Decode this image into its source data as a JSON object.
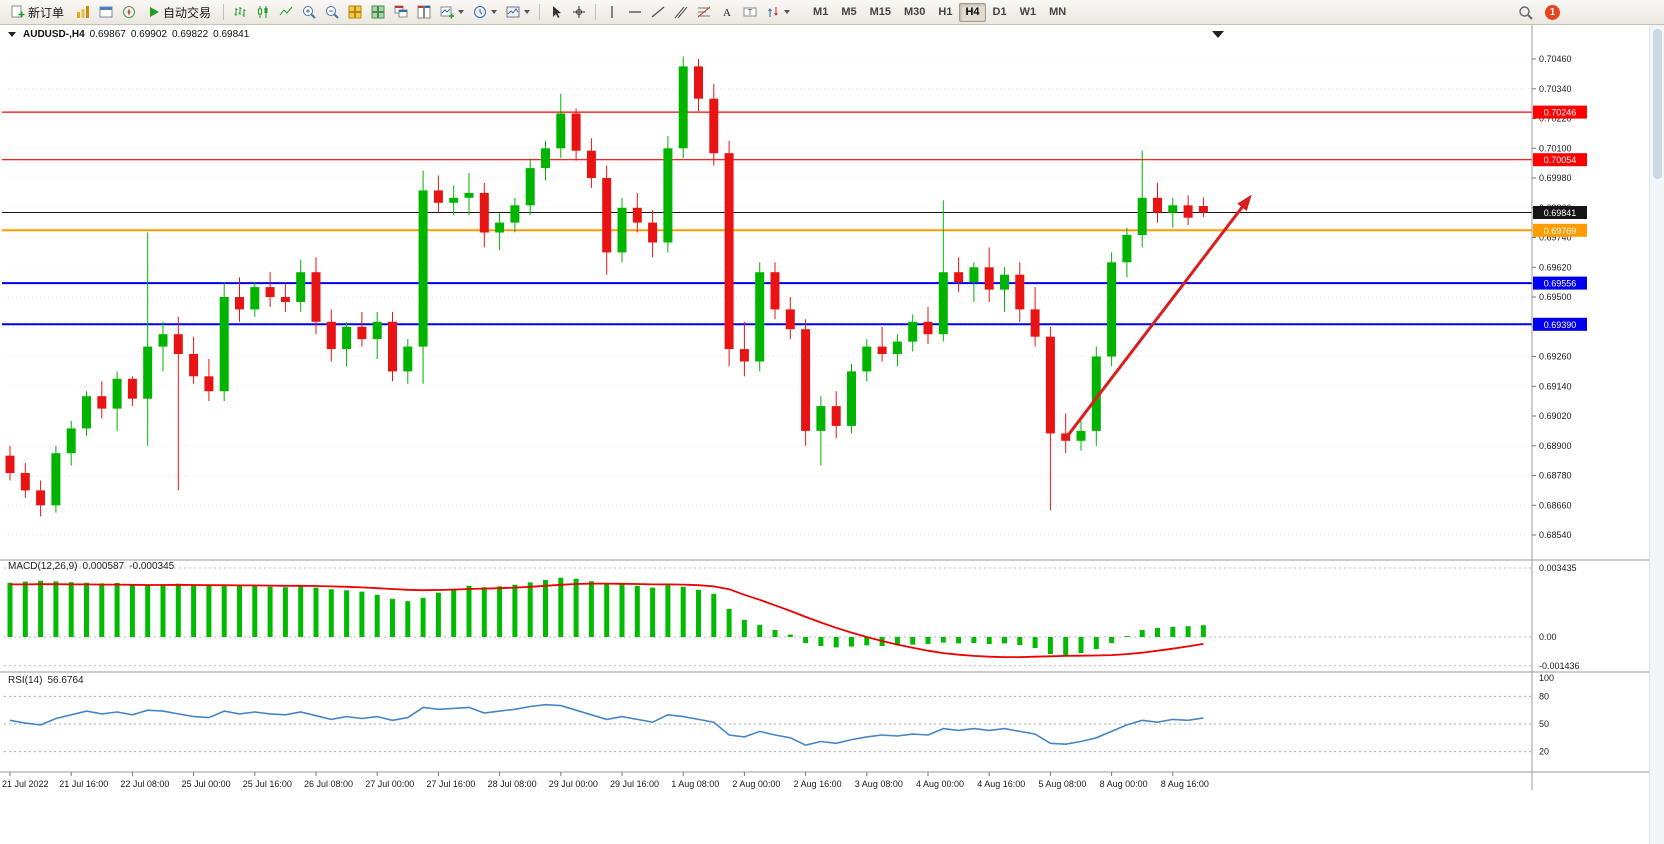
{
  "toolbar": {
    "new_order_label": "新订单",
    "auto_trading_label": "自动交易",
    "timeframes": [
      "M1",
      "M5",
      "M15",
      "M30",
      "H1",
      "H4",
      "D1",
      "W1",
      "MN"
    ],
    "active_timeframe": "H4",
    "notification_count": "1"
  },
  "chart_header": {
    "symbol": "AUDUSD-,H4",
    "open": "0.69867",
    "high": "0.69902",
    "low": "0.69822",
    "close": "0.69841"
  },
  "price_axis": {
    "labels": [
      "0.70460",
      "0.70340",
      "0.70220",
      "0.70100",
      "0.69980",
      "0.69860",
      "0.69740",
      "0.69620",
      "0.69500",
      "0.69380",
      "0.69260",
      "0.69140",
      "0.69020",
      "0.68900",
      "0.68780",
      "0.68660",
      "0.68540"
    ]
  },
  "levels": [
    {
      "price": 0.70246,
      "label": "0.70246",
      "color": "#ff0000",
      "width": 1.2
    },
    {
      "price": 0.70054,
      "label": "0.70054",
      "color": "#ff0000",
      "width": 1.2
    },
    {
      "price": 0.69841,
      "label": "0.69841",
      "color": "#151515",
      "width": 1
    },
    {
      "price": 0.69769,
      "label": "0.69769",
      "color": "#ff9c00",
      "width": 2
    },
    {
      "price": 0.69556,
      "label": "0.69556",
      "color": "#0000ee",
      "width": 2
    },
    {
      "price": 0.6939,
      "label": "0.69390",
      "color": "#0000ee",
      "width": 2
    }
  ],
  "time_axis": [
    {
      "candle": 0,
      "label": "21 Jul 2022"
    },
    {
      "candle": 4,
      "label": "21 Jul 16:00"
    },
    {
      "candle": 8,
      "label": "22 Jul 08:00"
    },
    {
      "candle": 12,
      "label": "25 Jul 00:00"
    },
    {
      "candle": 16,
      "label": "25 Jul 16:00"
    },
    {
      "candle": 20,
      "label": "26 Jul 08:00"
    },
    {
      "candle": 24,
      "label": "27 Jul 00:00"
    },
    {
      "candle": 28,
      "label": "27 Jul 16:00"
    },
    {
      "candle": 32,
      "label": "28 Jul 08:00"
    },
    {
      "candle": 36,
      "label": "29 Jul 00:00"
    },
    {
      "candle": 40,
      "label": "29 Jul 16:00"
    },
    {
      "candle": 44,
      "label": "1 Aug 08:00"
    },
    {
      "candle": 48,
      "label": "2 Aug 00:00"
    },
    {
      "candle": 52,
      "label": "2 Aug 16:00"
    },
    {
      "candle": 56,
      "label": "3 Aug 08:00"
    },
    {
      "candle": 60,
      "label": "4 Aug 00:00"
    },
    {
      "candle": 64,
      "label": "4 Aug 16:00"
    },
    {
      "candle": 68,
      "label": "5 Aug 08:00"
    },
    {
      "candle": 72,
      "label": "8 Aug 00:00"
    },
    {
      "candle": 76,
      "label": "8 Aug 16:00"
    }
  ],
  "macd_panel": {
    "name": "MACD(12,26,9)",
    "value": "0.000587",
    "signal": "-0.000345",
    "axis": [
      {
        "value": 0.003435,
        "label": "0.003435"
      },
      {
        "value": 0,
        "label": "0.00"
      },
      {
        "value": -0.001436,
        "label": "-0.001436"
      }
    ]
  },
  "rsi_panel": {
    "name": "RSI(14)",
    "value": "56.6764",
    "axis": [
      {
        "value": 100,
        "label": "100"
      },
      {
        "value": 80,
        "label": "80"
      },
      {
        "value": 50,
        "label": "50"
      },
      {
        "value": 20,
        "label": "20"
      }
    ],
    "dashed_levels": [
      80,
      50,
      20
    ]
  },
  "arrow": {
    "from_candle": 69,
    "from_price": 0.6893,
    "to_candle": 81,
    "to_price": 0.699,
    "color": "#d81f1f"
  },
  "colors": {
    "up": "#00b400",
    "down": "#e81414",
    "grid": "#ebebeb",
    "macd_histogram": "#00bb00",
    "macd_signal": "#ee0000",
    "rsi_line": "#4686c6"
  },
  "chart_data": {
    "type": "candlestick",
    "candles": [
      [
        0.6886,
        0.689,
        0.6876,
        0.6879
      ],
      [
        0.6879,
        0.6883,
        0.6869,
        0.6872
      ],
      [
        0.6872,
        0.6876,
        0.68615,
        0.6866
      ],
      [
        0.6866,
        0.689,
        0.6863,
        0.6887
      ],
      [
        0.6887,
        0.69,
        0.6882,
        0.6897
      ],
      [
        0.6897,
        0.6912,
        0.6894,
        0.691
      ],
      [
        0.691,
        0.6916,
        0.6901,
        0.6905
      ],
      [
        0.6905,
        0.692,
        0.6896,
        0.6917
      ],
      [
        0.6917,
        0.6918,
        0.6906,
        0.6909
      ],
      [
        0.6909,
        0.6976,
        0.689,
        0.693
      ],
      [
        0.693,
        0.694,
        0.692,
        0.6935
      ],
      [
        0.6935,
        0.6942,
        0.6872,
        0.6927
      ],
      [
        0.6927,
        0.6934,
        0.6915,
        0.6918
      ],
      [
        0.6918,
        0.6925,
        0.6908,
        0.6912
      ],
      [
        0.6912,
        0.6956,
        0.6908,
        0.695
      ],
      [
        0.695,
        0.6958,
        0.694,
        0.6945
      ],
      [
        0.6945,
        0.6956,
        0.6942,
        0.6954
      ],
      [
        0.6954,
        0.696,
        0.6946,
        0.695
      ],
      [
        0.695,
        0.6956,
        0.6944,
        0.6948
      ],
      [
        0.6948,
        0.6965,
        0.6944,
        0.696
      ],
      [
        0.696,
        0.6966,
        0.6935,
        0.694
      ],
      [
        0.694,
        0.6945,
        0.6924,
        0.6929
      ],
      [
        0.6929,
        0.694,
        0.6922,
        0.6938
      ],
      [
        0.6938,
        0.6944,
        0.693,
        0.6933
      ],
      [
        0.6933,
        0.6944,
        0.6925,
        0.694
      ],
      [
        0.694,
        0.6944,
        0.6916,
        0.692
      ],
      [
        0.692,
        0.6933,
        0.6915,
        0.693
      ],
      [
        0.693,
        0.7001,
        0.6915,
        0.6993
      ],
      [
        0.6993,
        0.6999,
        0.6984,
        0.6988
      ],
      [
        0.6988,
        0.6995,
        0.6983,
        0.699
      ],
      [
        0.699,
        0.7,
        0.6983,
        0.6992
      ],
      [
        0.6992,
        0.6996,
        0.697,
        0.6976
      ],
      [
        0.6976,
        0.6984,
        0.6969,
        0.698
      ],
      [
        0.698,
        0.699,
        0.6976,
        0.6987
      ],
      [
        0.6987,
        0.7006,
        0.6983,
        0.7002
      ],
      [
        0.7002,
        0.7013,
        0.6997,
        0.701
      ],
      [
        0.701,
        0.7032,
        0.7006,
        0.7024
      ],
      [
        0.7024,
        0.7026,
        0.7005,
        0.7009
      ],
      [
        0.7009,
        0.7014,
        0.6994,
        0.6998
      ],
      [
        0.6998,
        0.7003,
        0.6959,
        0.6968
      ],
      [
        0.6968,
        0.699,
        0.6964,
        0.6986
      ],
      [
        0.6986,
        0.6992,
        0.6976,
        0.698
      ],
      [
        0.698,
        0.6985,
        0.6966,
        0.6972
      ],
      [
        0.6972,
        0.7015,
        0.6968,
        0.701
      ],
      [
        0.701,
        0.7047,
        0.7006,
        0.7043
      ],
      [
        0.7043,
        0.7046,
        0.7025,
        0.703
      ],
      [
        0.703,
        0.7036,
        0.7003,
        0.7008
      ],
      [
        0.7008,
        0.7013,
        0.6922,
        0.6929
      ],
      [
        0.6929,
        0.694,
        0.6918,
        0.6924
      ],
      [
        0.6924,
        0.6964,
        0.692,
        0.696
      ],
      [
        0.696,
        0.6964,
        0.6941,
        0.6945
      ],
      [
        0.6945,
        0.695,
        0.6933,
        0.6937
      ],
      [
        0.6937,
        0.6941,
        0.689,
        0.6896
      ],
      [
        0.6896,
        0.691,
        0.6882,
        0.6906
      ],
      [
        0.6906,
        0.6912,
        0.6893,
        0.6898
      ],
      [
        0.6898,
        0.6923,
        0.6895,
        0.692
      ],
      [
        0.692,
        0.6933,
        0.6916,
        0.693
      ],
      [
        0.693,
        0.6938,
        0.6924,
        0.6927
      ],
      [
        0.6927,
        0.6935,
        0.6922,
        0.6932
      ],
      [
        0.6932,
        0.6943,
        0.6928,
        0.694
      ],
      [
        0.694,
        0.6946,
        0.6931,
        0.6935
      ],
      [
        0.6935,
        0.6989,
        0.6932,
        0.696
      ],
      [
        0.696,
        0.6966,
        0.6952,
        0.6956
      ],
      [
        0.6956,
        0.6964,
        0.6948,
        0.6962
      ],
      [
        0.6962,
        0.697,
        0.6948,
        0.6953
      ],
      [
        0.6953,
        0.6962,
        0.6944,
        0.6959
      ],
      [
        0.6959,
        0.6964,
        0.694,
        0.6945
      ],
      [
        0.6945,
        0.6954,
        0.693,
        0.6934
      ],
      [
        0.6934,
        0.6938,
        0.6864,
        0.6895
      ],
      [
        0.6895,
        0.6903,
        0.6887,
        0.6892
      ],
      [
        0.6892,
        0.69,
        0.6888,
        0.6896
      ],
      [
        0.6896,
        0.693,
        0.689,
        0.6926
      ],
      [
        0.6926,
        0.6968,
        0.6922,
        0.6964
      ],
      [
        0.6964,
        0.6978,
        0.6958,
        0.6975
      ],
      [
        0.6975,
        0.7009,
        0.697,
        0.699
      ],
      [
        0.699,
        0.6996,
        0.698,
        0.6984
      ],
      [
        0.6984,
        0.699,
        0.6978,
        0.6987
      ],
      [
        0.6987,
        0.6991,
        0.6979,
        0.6982
      ],
      [
        0.69867,
        0.69902,
        0.69822,
        0.69841
      ]
    ],
    "macd_histogram": [
      0.0027,
      0.00276,
      0.0028,
      0.00277,
      0.00273,
      0.0027,
      0.00267,
      0.00269,
      0.00264,
      0.0026,
      0.00263,
      0.00265,
      0.0026,
      0.00255,
      0.0026,
      0.00254,
      0.00256,
      0.0025,
      0.00248,
      0.00252,
      0.00246,
      0.00238,
      0.00232,
      0.00226,
      0.0021,
      0.0019,
      0.00178,
      0.00195,
      0.0022,
      0.0024,
      0.00255,
      0.00248,
      0.00252,
      0.0026,
      0.00272,
      0.00284,
      0.00295,
      0.0029,
      0.00278,
      0.00262,
      0.00262,
      0.00255,
      0.00246,
      0.00258,
      0.0025,
      0.00235,
      0.00215,
      0.0014,
      0.00085,
      0.0006,
      0.00035,
      0.00012,
      -0.0003,
      -0.00045,
      -0.00052,
      -0.00048,
      -0.00042,
      -0.00045,
      -0.00042,
      -0.00038,
      -0.00035,
      -0.00028,
      -0.00032,
      -0.0003,
      -0.00035,
      -0.00032,
      -0.0004,
      -0.00055,
      -0.00085,
      -0.0009,
      -0.0008,
      -0.0006,
      -0.0003,
      5e-05,
      0.00035,
      0.00045,
      0.0005,
      0.00054,
      0.000587
    ],
    "macd_signal": [
      0.00262,
      0.00262,
      0.00263,
      0.00263,
      0.00262,
      0.00262,
      0.00261,
      0.00261,
      0.0026,
      0.00259,
      0.00259,
      0.0026,
      0.00259,
      0.00258,
      0.00258,
      0.00257,
      0.00257,
      0.00256,
      0.00255,
      0.00255,
      0.00254,
      0.00252,
      0.0025,
      0.00247,
      0.00243,
      0.00239,
      0.00235,
      0.00233,
      0.00234,
      0.00236,
      0.00239,
      0.00241,
      0.00243,
      0.00246,
      0.0025,
      0.00255,
      0.0026,
      0.00264,
      0.00266,
      0.00266,
      0.00265,
      0.00264,
      0.00262,
      0.00262,
      0.00261,
      0.00258,
      0.00252,
      0.00238,
      0.0021,
      0.00185,
      0.00158,
      0.0013,
      0.001,
      0.00072,
      0.00046,
      0.00022,
      0.0,
      -0.0002,
      -0.00038,
      -0.00054,
      -0.00068,
      -0.0008,
      -0.00088,
      -0.00094,
      -0.00098,
      -0.001,
      -0.001,
      -0.00098,
      -0.00096,
      -0.00094,
      -0.00093,
      -0.00092,
      -0.0009,
      -0.00085,
      -0.00078,
      -0.00068,
      -0.00058,
      -0.00047,
      -0.000345
    ],
    "rsi": [
      54,
      51,
      49,
      56,
      60,
      64,
      61,
      63,
      60,
      65,
      64,
      61,
      58,
      57,
      64,
      61,
      63,
      61,
      60,
      63,
      59,
      55,
      58,
      56,
      58,
      54,
      57,
      68,
      66,
      67,
      68,
      62,
      64,
      66,
      69,
      71,
      70,
      65,
      60,
      55,
      58,
      55,
      52,
      60,
      58,
      55,
      52,
      38,
      36,
      42,
      38,
      35,
      27,
      31,
      29,
      33,
      36,
      38,
      37,
      39,
      38,
      45,
      43,
      45,
      43,
      45,
      42,
      39,
      29,
      28,
      31,
      35,
      42,
      49,
      54,
      52,
      55,
      54,
      56.68
    ]
  }
}
